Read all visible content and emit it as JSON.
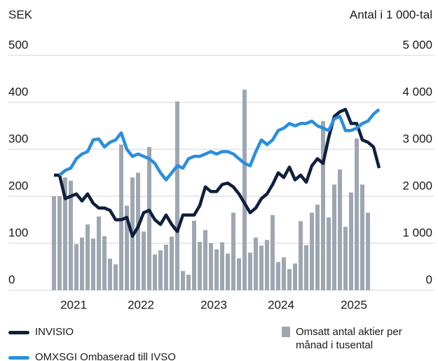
{
  "chart_data": {
    "type": "bar-line",
    "ylabel": "SEK",
    "y2label": "Antal i 1 000-tal",
    "categories": [
      null,
      null,
      null,
      "2021",
      null,
      null,
      null,
      null,
      null,
      null,
      null,
      null,
      null,
      null,
      null,
      "2022",
      null,
      null,
      null,
      null,
      null,
      null,
      null,
      null,
      null,
      null,
      null,
      null,
      "2023",
      null,
      null,
      null,
      null,
      null,
      null,
      null,
      null,
      null,
      null,
      null,
      "2024",
      null,
      null,
      null,
      null,
      null,
      null,
      null,
      null,
      null,
      null,
      null,
      null,
      "2025",
      null,
      null,
      null,
      null,
      null
    ],
    "ylim": [
      0,
      500
    ],
    "yticks": [
      0,
      100,
      200,
      300,
      400,
      500
    ],
    "y2lim": [
      0,
      5000
    ],
    "y2ticks": [
      0,
      {
        "value": 1000,
        "label": "1 000"
      },
      {
        "value": 2000,
        "label": "2 000"
      },
      {
        "value": 3000,
        "label": "3 000"
      },
      {
        "value": 4000,
        "label": "4 000"
      },
      {
        "value": 5000,
        "label": "5 000"
      }
    ],
    "grid": true,
    "series": [
      {
        "name": "Omsatt antal aktier per månad i tusental",
        "type": "bar",
        "axis": "y2",
        "color": "#9ea7b1",
        "values": [
          2000,
          2000,
          2400,
          2330,
          980,
          1120,
          1400,
          1100,
          1570,
          1150,
          670,
          550,
          3100,
          1800,
          2400,
          2500,
          1250,
          3050,
          760,
          850,
          970,
          1140,
          4020,
          410,
          330,
          1480,
          1030,
          1280,
          1000,
          870,
          1020,
          780,
          1650,
          680,
          4270,
          800,
          1120,
          950,
          1070,
          1600,
          600,
          700,
          450,
          570,
          1470,
          960,
          1650,
          1820,
          3600,
          1550,
          2250,
          2570,
          1350,
          2080,
          3230,
          2250,
          1650,
          null,
          null
        ]
      },
      {
        "name": "INVISIO",
        "type": "line",
        "color": "#0f1f3d",
        "values": [
          245,
          245,
          195,
          200,
          205,
          190,
          205,
          185,
          175,
          175,
          170,
          150,
          150,
          155,
          115,
          135,
          165,
          170,
          150,
          140,
          160,
          140,
          125,
          160,
          160,
          160,
          180,
          220,
          210,
          210,
          225,
          228,
          220,
          205,
          185,
          165,
          175,
          195,
          205,
          225,
          250,
          240,
          262,
          235,
          245,
          230,
          265,
          280,
          270,
          325,
          370,
          380,
          385,
          355,
          355,
          320,
          315,
          305,
          260
        ]
      },
      {
        "name": "OMXSGI Ombaserad till IVSO",
        "type": "line",
        "color": "#2a8fdc",
        "values": [
          null,
          245,
          255,
          260,
          280,
          290,
          295,
          320,
          322,
          305,
          315,
          320,
          335,
          300,
          285,
          290,
          285,
          280,
          270,
          250,
          235,
          250,
          265,
          260,
          280,
          285,
          285,
          290,
          295,
          290,
          295,
          295,
          290,
          280,
          270,
          265,
          295,
          320,
          310,
          320,
          340,
          345,
          355,
          350,
          355,
          355,
          360,
          350,
          345,
          340,
          365,
          370,
          340,
          340,
          345,
          355,
          360,
          375,
          385
        ]
      }
    ]
  }
}
